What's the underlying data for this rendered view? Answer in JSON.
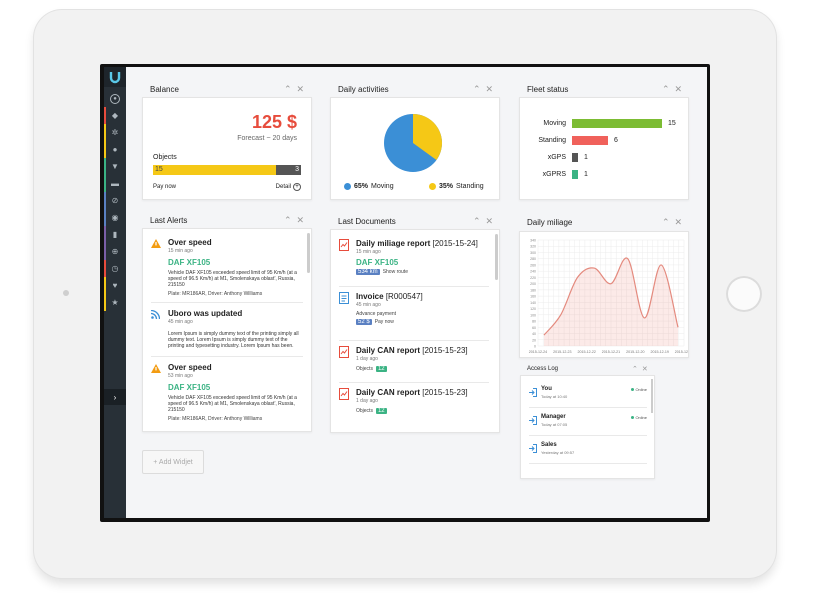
{
  "colors": {
    "accent": "#e74c3c",
    "moving": "#3b8fd6",
    "standing": "#f5c816",
    "green": "#7cbc33",
    "red": "#f0615b",
    "dark": "#555555",
    "teal": "#3bb384",
    "pill_blue": "#5a80c2"
  },
  "sidebar": {
    "items": [
      {
        "icon": "user-icon",
        "glyph": "●",
        "accent": ""
      },
      {
        "icon": "bell-icon",
        "glyph": "◆",
        "accent": "#e84c3d"
      },
      {
        "icon": "gear-icon",
        "glyph": "✲",
        "accent": "#f5c816"
      },
      {
        "icon": "info-icon",
        "glyph": "●",
        "accent": "#f5c816"
      },
      {
        "icon": "pin-icon",
        "glyph": "▼",
        "accent": "#3bb384"
      },
      {
        "icon": "car-icon",
        "glyph": "▬",
        "accent": "#3bb384"
      },
      {
        "icon": "block-icon",
        "glyph": "⊘",
        "accent": "#5a80c2"
      },
      {
        "icon": "target-icon",
        "glyph": "◉",
        "accent": "#5a80c2"
      },
      {
        "icon": "document-icon",
        "glyph": "▮",
        "accent": "#7b5ea7"
      },
      {
        "icon": "globe-icon",
        "glyph": "⊕",
        "accent": "#7b5ea7"
      },
      {
        "icon": "clock-icon",
        "glyph": "◷",
        "accent": "#e84c3d"
      },
      {
        "icon": "heart-icon",
        "glyph": "♥",
        "accent": "#f5c816"
      },
      {
        "icon": "star-icon",
        "glyph": "★",
        "accent": "#f5c816"
      }
    ],
    "expand_icon": "chevron-right-icon"
  },
  "balance": {
    "title": "Balance",
    "amount": "125 $",
    "forecast": "Forecast ~ 20 days",
    "objects_label": "Objects",
    "objects_count": "15",
    "objects_other": "3",
    "objects_fraction": 0.83,
    "pay_now": "Pay now",
    "detail": "Detail"
  },
  "daily_activities": {
    "title": "Daily activities",
    "moving_pct": "65%",
    "moving_label": "Moving",
    "standing_pct": "35%",
    "standing_label": "Standing",
    "moving_value": 65,
    "standing_value": 35
  },
  "fleet": {
    "title": "Fleet status",
    "rows": [
      {
        "label": "Moving",
        "value": 15
      },
      {
        "label": "Standing",
        "value": 6
      },
      {
        "label": "xGPS",
        "value": 1
      },
      {
        "label": "xGPRS",
        "value": 1
      }
    ]
  },
  "alerts": {
    "title": "Last Alerts",
    "items": [
      {
        "icon": "warning-icon",
        "title": "Over speed",
        "time": "15 min ago",
        "vehicle": "DAF XF105",
        "text": "Vehicle DAF XF105 exceeded speed limit of 95 Km/h (at a speed of 96.5 Km/h) at M1, Smolenskaya oblast', Russia, 215150",
        "meta": "Plate: MR186AR, Driver: Anthony Williams"
      },
      {
        "icon": "rss-icon",
        "title": "Uboro was updated",
        "time": "45 min ago",
        "vehicle": "",
        "text": "Lorem Ipsum is simply dummy text of the printing simply all dummy text. Lorem Ipsum is simply dummy text of the printing and typesetting industry. Lorem Ipsum has been.",
        "meta": ""
      },
      {
        "icon": "warning-icon",
        "title": "Over speed",
        "time": "53 min ago",
        "vehicle": "DAF XF105",
        "text": "Vehicle DAF XF105 exceeded speed limit of 95 Km/h (at a speed of 96.5 Km/h) at M1, Smolenskaya oblast', Russia, 215150",
        "meta": "Plate: MR186AR, Driver: Anthony Williams"
      }
    ]
  },
  "documents": {
    "title": "Last Documents",
    "items": [
      {
        "icon": "report-icon",
        "title": "Daily miliage report",
        "suffix": "[2015-15-24]",
        "time": "15 min ago",
        "vehicle": "DAF XF105",
        "pill": "534 km",
        "link": "Show route",
        "extra": ""
      },
      {
        "icon": "invoice-icon",
        "title": "Invoice",
        "suffix": "[R000547]",
        "time": "45 min ago",
        "vehicle": "",
        "pill": "52 $",
        "link": "Pay now",
        "extra": "Advance payment"
      },
      {
        "icon": "report-icon",
        "title": "Daily CAN report",
        "suffix": "[2015-15-23]",
        "time": "1 day ago",
        "vehicle": "",
        "pill": "12",
        "link": "",
        "extra": "Objects"
      },
      {
        "icon": "report-icon",
        "title": "Daily CAN report",
        "suffix": "[2015-15-23]",
        "time": "1 day ago",
        "vehicle": "",
        "pill": "12",
        "link": "",
        "extra": "Objects"
      }
    ]
  },
  "chart_data": {
    "type": "area",
    "title": "Daily miliage",
    "categories": [
      "2015-12-24",
      "2015-12-23",
      "2015-12-22",
      "2015-12-21",
      "2015-12-20",
      "2015-12-19",
      "2015-12-18"
    ],
    "ylim": [
      0,
      340
    ],
    "yticks": [
      0,
      20,
      40,
      60,
      80,
      100,
      120,
      140,
      160,
      180,
      200,
      220,
      240,
      260,
      280,
      300,
      320,
      340
    ],
    "values": [
      35,
      100,
      220,
      250,
      200,
      280,
      90,
      260,
      60
    ],
    "x": [
      "2015-12-24",
      "2015-12-23",
      "2015-12-22",
      "2015-12-21",
      "2015-12-20",
      "2015-12-19",
      "2015-12-18",
      "2015-12-18",
      "2015-12-18"
    ],
    "grid": true,
    "color": "#e48a7e"
  },
  "access_log": {
    "title": "Access Log",
    "items": [
      {
        "user": "You",
        "time": "Today at 10:40",
        "status": "Online"
      },
      {
        "user": "Manager",
        "time": "Today at 07:05",
        "status": "Online"
      },
      {
        "user": "Sales",
        "time": "Yesterday at 09:57",
        "status": ""
      }
    ]
  },
  "add_widget": "+ Add Widjet"
}
